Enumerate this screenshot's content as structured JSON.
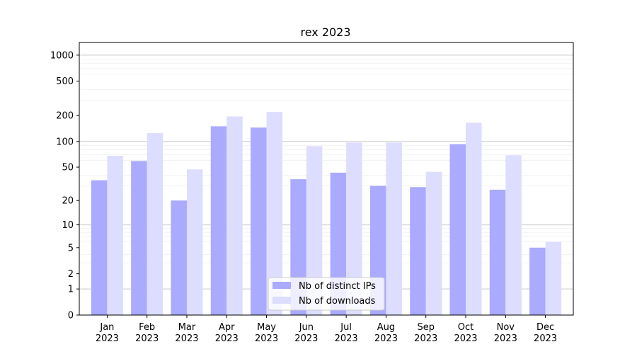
{
  "chart_data": {
    "type": "bar",
    "title": "rex 2023",
    "xlabel": "",
    "ylabel": "",
    "yscale": "symlog",
    "ylim": [
      0,
      1400
    ],
    "yticks": [
      0,
      1,
      2,
      5,
      10,
      20,
      50,
      100,
      200,
      500,
      1000
    ],
    "categories": [
      [
        "Jan",
        "2023"
      ],
      [
        "Feb",
        "2023"
      ],
      [
        "Mar",
        "2023"
      ],
      [
        "Apr",
        "2023"
      ],
      [
        "May",
        "2023"
      ],
      [
        "Jun",
        "2023"
      ],
      [
        "Jul",
        "2023"
      ],
      [
        "Aug",
        "2023"
      ],
      [
        "Sep",
        "2023"
      ],
      [
        "Oct",
        "2023"
      ],
      [
        "Nov",
        "2023"
      ],
      [
        "Dec",
        "2023"
      ]
    ],
    "series": [
      {
        "name": "Nb of distinct IPs",
        "color": "#aaaaff",
        "values": [
          35,
          59,
          20,
          150,
          145,
          36,
          43,
          30,
          29,
          93,
          27,
          5
        ]
      },
      {
        "name": "Nb of downloads",
        "color": "#ddddff",
        "values": [
          68,
          125,
          47,
          195,
          220,
          88,
          97,
          97,
          44,
          165,
          69,
          6
        ]
      }
    ],
    "grid": true,
    "legend_position": "bottom-center"
  }
}
